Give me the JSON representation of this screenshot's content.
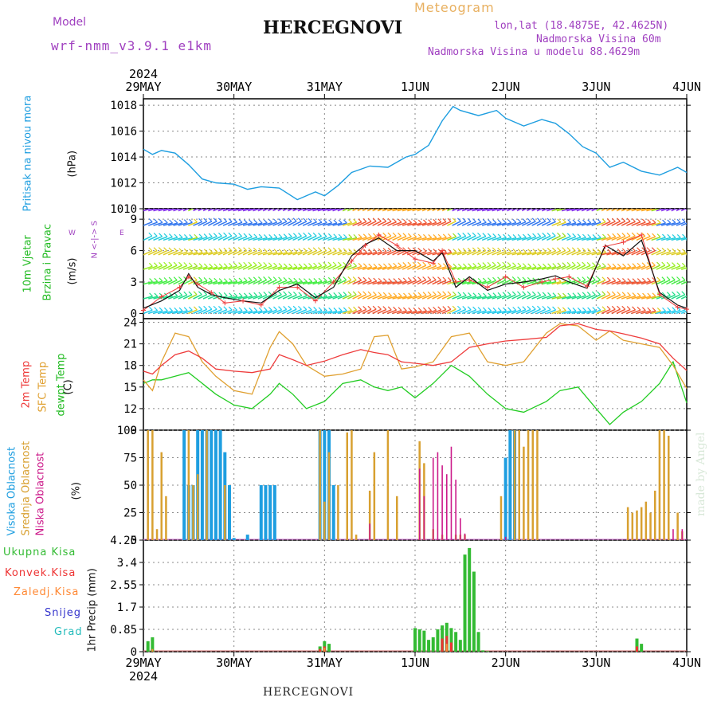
{
  "header": {
    "model_label": "Model",
    "model_name": "wrf-nmm_v3.9.1 e1km",
    "title": "HERCEGNOVI",
    "product": "Meteogram",
    "lonlat": "lon,lat (18.4875E, 42.4625N)",
    "altitude": "Nadmorska Visina 60m",
    "model_altitude": "Nadmorska Visina u modelu 88.4629m"
  },
  "footer": {
    "station": "HERCEGNOVI",
    "credit": "made by Angel"
  },
  "colors": {
    "pressure": "#1e9ee0",
    "temp2m": "#ee3b3b",
    "sfc": "#e0a030",
    "dewpt": "#22cc22",
    "high_cloud": "#1e9ee0",
    "mid_cloud": "#d8a030",
    "low_cloud": "#cc1a8a",
    "total_precip": "#33bb33",
    "conv_precip": "#ee3333",
    "strat_precip": "#ff8833",
    "snow": "#3333cc",
    "graupel": "#22bbbb",
    "purple_text": "#a040c0"
  },
  "chart_data": [
    {
      "type": "line",
      "title": "Pritisak na nivou mora",
      "ylabel": "(hPa)",
      "ylim": [
        1010,
        1018.5
      ],
      "yticks": [
        "1010",
        "1012",
        "1014",
        "1016",
        "1018"
      ],
      "x_ticks_top": [
        "29MAY",
        "30MAY",
        "31MAY",
        "1JUN",
        "2JUN",
        "3JUN",
        "4JUN"
      ],
      "x_year": "2024",
      "xlim_days": [
        0,
        6
      ],
      "x": [
        0,
        0.1,
        0.2,
        0.35,
        0.5,
        0.65,
        0.8,
        1.0,
        1.15,
        1.3,
        1.5,
        1.7,
        1.9,
        2.0,
        2.15,
        2.3,
        2.5,
        2.7,
        2.9,
        3.0,
        3.15,
        3.3,
        3.42,
        3.5,
        3.7,
        3.9,
        4.0,
        4.2,
        4.4,
        4.55,
        4.7,
        4.85,
        5.0,
        5.15,
        5.3,
        5.5,
        5.7,
        5.9,
        6.0
      ],
      "series": [
        {
          "values": [
            1014.6,
            1014.2,
            1014.5,
            1014.3,
            1013.4,
            1012.3,
            1012.0,
            1011.9,
            1011.5,
            1011.7,
            1011.6,
            1010.7,
            1011.3,
            1011.0,
            1011.8,
            1012.8,
            1013.3,
            1013.2,
            1014.0,
            1014.2,
            1014.9,
            1016.8,
            1017.9,
            1017.6,
            1017.2,
            1017.6,
            1017.0,
            1016.4,
            1016.9,
            1016.6,
            1015.8,
            1014.8,
            1014.3,
            1013.2,
            1013.6,
            1012.9,
            1012.6,
            1013.2,
            1012.8
          ]
        }
      ],
      "grid": true
    },
    {
      "type": "line",
      "title": "10m Vjetar Brzina i Pravac",
      "ylabel": "(m/s)",
      "ylim": [
        -0.5,
        10
      ],
      "yticks": [
        "0",
        "3",
        "6",
        "9"
      ],
      "compass": "N <-|-> S  W E",
      "x": [
        0,
        0.2,
        0.4,
        0.5,
        0.6,
        0.75,
        0.9,
        1.1,
        1.3,
        1.5,
        1.7,
        1.9,
        2.1,
        2.3,
        2.45,
        2.6,
        2.8,
        3.0,
        3.2,
        3.3,
        3.45,
        3.6,
        3.8,
        4.0,
        4.2,
        4.4,
        4.55,
        4.7,
        4.9,
        5.1,
        5.3,
        5.5,
        5.7,
        5.9,
        6.0
      ],
      "series": [
        {
          "values": [
            0.5,
            1.2,
            2.2,
            3.8,
            2.5,
            1.8,
            1.5,
            1.2,
            1.0,
            2.2,
            2.8,
            1.5,
            2.5,
            5.5,
            6.6,
            7.2,
            6.0,
            6.0,
            5.0,
            5.8,
            2.5,
            3.5,
            2.2,
            2.8,
            3.0,
            3.3,
            3.6,
            3.0,
            2.4,
            6.5,
            5.5,
            7.0,
            2.0,
            0.8,
            0.5
          ]
        },
        {
          "values": [
            0.3,
            1.6,
            2.5,
            3.5,
            2.8,
            2.0,
            1.0,
            1.2,
            0.8,
            2.5,
            2.5,
            1.2,
            3.0,
            5.0,
            6.5,
            7.5,
            6.5,
            5.2,
            4.8,
            6.0,
            3.0,
            3.2,
            2.5,
            3.5,
            2.5,
            3.0,
            3.3,
            3.5,
            2.6,
            6.4,
            6.8,
            7.5,
            1.8,
            0.6,
            0.4
          ]
        }
      ],
      "barb_rows": [
        0,
        1.4,
        2.8,
        4.2,
        5.6,
        7.0,
        8.4,
        9.8
      ],
      "grid": true
    },
    {
      "type": "line",
      "ylabel": "(C)",
      "ylim": [
        9,
        24.5
      ],
      "yticks": [
        "9",
        "12",
        "15",
        "18",
        "21",
        "24"
      ],
      "x": [
        0,
        0.1,
        0.2,
        0.35,
        0.5,
        0.65,
        0.8,
        1.0,
        1.2,
        1.4,
        1.5,
        1.65,
        1.8,
        2.0,
        2.2,
        2.4,
        2.55,
        2.7,
        2.85,
        3.0,
        3.2,
        3.4,
        3.6,
        3.8,
        4.0,
        4.2,
        4.45,
        4.6,
        4.8,
        5.0,
        5.15,
        5.3,
        5.5,
        5.7,
        5.85,
        6.0
      ],
      "series": [
        {
          "name": "2m Temp",
          "values": [
            17.2,
            16.8,
            18.0,
            19.5,
            20.0,
            19.0,
            17.5,
            17.2,
            17.0,
            17.5,
            19.5,
            18.8,
            18.0,
            18.6,
            19.5,
            20.2,
            19.8,
            19.5,
            18.5,
            18.3,
            18.0,
            18.5,
            20.5,
            21.0,
            21.4,
            21.6,
            21.9,
            23.5,
            23.8,
            23.0,
            22.8,
            22.4,
            21.8,
            21.0,
            19.0,
            17.3
          ]
        },
        {
          "name": "SFC Temp",
          "values": [
            16.0,
            14.5,
            18.5,
            22.5,
            22.0,
            18.5,
            16.5,
            14.5,
            14.0,
            20.5,
            22.7,
            21.0,
            18.0,
            16.5,
            16.8,
            17.5,
            22.0,
            22.2,
            17.5,
            17.8,
            18.5,
            22.0,
            22.5,
            18.5,
            18.0,
            18.5,
            22.5,
            23.8,
            23.5,
            21.5,
            22.8,
            21.5,
            21.0,
            20.5,
            18.0,
            14.8
          ]
        },
        {
          "name": "dewpt Temp",
          "values": [
            15.5,
            16.0,
            16.0,
            16.5,
            17.0,
            15.5,
            14.0,
            12.5,
            12.0,
            14.0,
            15.5,
            14.0,
            12.0,
            13.0,
            15.5,
            16.0,
            15.0,
            14.5,
            15.0,
            13.5,
            15.5,
            18.0,
            16.5,
            14.0,
            12.0,
            11.5,
            13.0,
            14.5,
            15.0,
            12.0,
            9.8,
            11.5,
            13.0,
            15.5,
            18.5,
            12.8
          ]
        }
      ],
      "grid": true
    },
    {
      "type": "bar",
      "ylabel": "(%)",
      "ylim": [
        0,
        100
      ],
      "yticks": [
        "0",
        "25",
        "50",
        "75",
        "100"
      ],
      "series": [
        {
          "name": "Visoka Oblacnost",
          "x": [
            0.45,
            0.5,
            0.55,
            0.6,
            0.65,
            0.7,
            0.75,
            0.8,
            0.85,
            0.9,
            0.95,
            1.0,
            1.05,
            1.1,
            1.15,
            1.2,
            1.25,
            1.3,
            1.35,
            1.4,
            1.45,
            1.6,
            1.95,
            2.0,
            2.05,
            2.1,
            4.0,
            4.05,
            4.1
          ],
          "values": [
            100,
            50,
            50,
            100,
            100,
            100,
            100,
            100,
            100,
            80,
            50,
            2,
            0,
            0,
            5,
            0,
            0,
            50,
            50,
            50,
            50,
            0,
            100,
            100,
            100,
            50,
            75,
            100,
            100
          ]
        },
        {
          "name": "Srednja Oblacnost",
          "x": [
            0.05,
            0.1,
            0.15,
            0.2,
            0.25,
            0.5,
            0.55,
            0.6,
            0.7,
            0.9,
            1.95,
            2.0,
            2.05,
            2.15,
            2.25,
            2.3,
            2.35,
            2.5,
            2.55,
            2.7,
            2.8,
            3.05,
            3.1,
            3.2,
            3.3,
            3.45,
            3.5,
            3.55,
            3.95,
            4.1,
            4.15,
            4.2,
            4.25,
            4.3,
            4.35,
            5.35,
            5.4,
            5.45,
            5.5,
            5.55,
            5.6,
            5.65,
            5.7,
            5.75,
            5.8,
            5.9,
            5.95
          ],
          "values": [
            100,
            100,
            10,
            80,
            40,
            100,
            50,
            60,
            100,
            50,
            100,
            35,
            80,
            50,
            98,
            100,
            5,
            45,
            80,
            100,
            40,
            90,
            70,
            10,
            5,
            5,
            5,
            5,
            40,
            100,
            100,
            85,
            100,
            100,
            100,
            30,
            25,
            27,
            30,
            35,
            25,
            45,
            100,
            100,
            95,
            25,
            8
          ]
        },
        {
          "name": "Niska Oblacnost",
          "x": [
            2.5,
            3.05,
            3.1,
            3.2,
            3.25,
            3.3,
            3.35,
            3.4,
            3.45,
            3.5,
            3.55,
            3.85,
            4.0,
            5.85,
            5.95
          ],
          "values": [
            15,
            65,
            40,
            75,
            80,
            68,
            60,
            85,
            55,
            20,
            6,
            0,
            3,
            10,
            10
          ]
        }
      ],
      "grid": true
    },
    {
      "type": "bar",
      "ylabel": "1hr Precip (mm)",
      "ylim": [
        0,
        4.25
      ],
      "yticks": [
        "0",
        "0.85",
        "1.7",
        "2.55",
        "3.4",
        "4.25"
      ],
      "x_ticks_bottom": [
        "29MAY",
        "30MAY",
        "31MAY",
        "1JUN",
        "2JUN",
        "3JUN",
        "4JUN"
      ],
      "x_year": "2024",
      "series": [
        {
          "name": "Ukupna Kisa",
          "x": [
            0.05,
            0.1,
            1.95,
            2.0,
            2.05,
            3.0,
            3.05,
            3.1,
            3.15,
            3.2,
            3.25,
            3.3,
            3.35,
            3.4,
            3.45,
            3.5,
            3.55,
            3.6,
            3.65,
            3.7,
            3.75,
            3.8,
            5.45,
            5.5
          ],
          "values": [
            0.4,
            0.55,
            0.2,
            0.4,
            0.3,
            0.9,
            0.85,
            0.8,
            0.45,
            0.55,
            0.85,
            1.0,
            1.1,
            0.9,
            0.75,
            0.45,
            3.7,
            3.95,
            3.05,
            0.75,
            0.05,
            0.02,
            0.5,
            0.3
          ]
        },
        {
          "name": "Konvek.Kisa",
          "x": [
            1.95,
            2.0,
            3.3,
            3.35,
            3.4,
            5.45
          ],
          "values": [
            0.1,
            0.2,
            0.5,
            0.6,
            0.35,
            0.2
          ]
        },
        {
          "name": "Zaledj.Kisa",
          "x": [
            0.1,
            2.0,
            3.35
          ],
          "values": [
            0.1,
            0.15,
            0.3
          ]
        },
        {
          "name": "Snijeg",
          "x": [],
          "values": []
        },
        {
          "name": "Grad",
          "x": [],
          "values": []
        }
      ],
      "grid": true
    }
  ],
  "panel_labels": {
    "pressure": "Pritisak na nivou mora",
    "pressure_unit": "(hPa)",
    "wind1": "10m Vjetar",
    "wind2": "Brzina i Pravac",
    "wind_unit": "(m/s)",
    "wind_compass_ns": "N <-|-> S",
    "wind_compass_w": "W",
    "wind_compass_e": "E",
    "temp1": "2m Temp",
    "temp2": "SFC Temp",
    "temp3": "dewpt Temp",
    "temp_unit": "(C)",
    "cloud1": "Visoka Oblacnost",
    "cloud2": "Srednja Oblacnost",
    "cloud3": "Niska Oblacnost",
    "cloud_unit": "(%)",
    "precip_unit": "1hr Precip (mm)",
    "precip_legend": [
      "Ukupna Kisa",
      "Konvek.Kisa",
      "Zaledj.Kisa",
      "Snijeg",
      "Grad"
    ]
  }
}
